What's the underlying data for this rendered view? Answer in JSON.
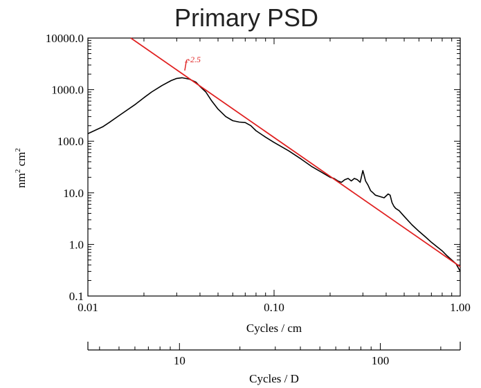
{
  "chart_data": {
    "type": "line",
    "title": "Primary PSD",
    "xlabel": "Cycles / cm",
    "ylabel": "nm² cm²",
    "x_scale": "log",
    "y_scale": "log",
    "xlim": [
      0.01,
      1.0
    ],
    "ylim": [
      0.1,
      10000
    ],
    "x_ticks": [
      {
        "value": 0.01,
        "label": "0.01"
      },
      {
        "value": 0.1,
        "label": "0.10"
      },
      {
        "value": 1.0,
        "label": "1.00"
      }
    ],
    "y_ticks": [
      {
        "value": 10000,
        "label": "10000.0"
      },
      {
        "value": 1000,
        "label": "1000.0"
      },
      {
        "value": 100,
        "label": "100.0"
      },
      {
        "value": 10,
        "label": "10.0"
      },
      {
        "value": 1,
        "label": "1.0"
      },
      {
        "value": 0.1,
        "label": "0.1"
      }
    ],
    "secondary_x_axis": {
      "label": "Cycles / D",
      "range": [
        3.5,
        250
      ],
      "ticks": [
        {
          "value": 10,
          "label": "10"
        },
        {
          "value": 100,
          "label": "100"
        }
      ]
    },
    "series": [
      {
        "color": "#000000",
        "x": [
          0.01,
          0.012,
          0.013,
          0.015,
          0.018,
          0.02,
          0.022,
          0.025,
          0.028,
          0.03,
          0.032,
          0.035,
          0.038,
          0.04,
          0.043,
          0.046,
          0.05,
          0.055,
          0.06,
          0.065,
          0.07,
          0.075,
          0.08,
          0.09,
          0.1,
          0.12,
          0.14,
          0.16,
          0.18,
          0.2,
          0.21,
          0.22,
          0.23,
          0.24,
          0.25,
          0.26,
          0.27,
          0.28,
          0.29,
          0.3,
          0.31,
          0.32,
          0.33,
          0.34,
          0.35,
          0.37,
          0.39,
          0.41,
          0.42,
          0.43,
          0.44,
          0.45,
          0.47,
          0.5,
          0.55,
          0.6,
          0.65,
          0.7,
          0.75,
          0.8,
          0.85,
          0.9,
          0.95,
          1.0
        ],
        "y": [
          140,
          190,
          230,
          330,
          520,
          700,
          900,
          1200,
          1500,
          1650,
          1700,
          1600,
          1400,
          1150,
          900,
          620,
          420,
          300,
          250,
          235,
          230,
          200,
          160,
          120,
          95,
          65,
          45,
          32,
          25,
          20,
          19,
          17,
          16,
          18,
          19,
          17,
          19,
          18,
          16,
          27,
          17,
          14,
          11,
          10,
          9,
          8.5,
          8,
          9.5,
          9,
          6.5,
          5.5,
          5,
          4.5,
          3.5,
          2.4,
          1.8,
          1.4,
          1.1,
          0.9,
          0.75,
          0.6,
          0.5,
          0.42,
          0.3
        ]
      },
      {
        "color": "#e02020",
        "x": [
          0.017,
          1.0
        ],
        "y": [
          10000,
          0.37
        ],
        "annotation": "f-2.5"
      }
    ]
  }
}
